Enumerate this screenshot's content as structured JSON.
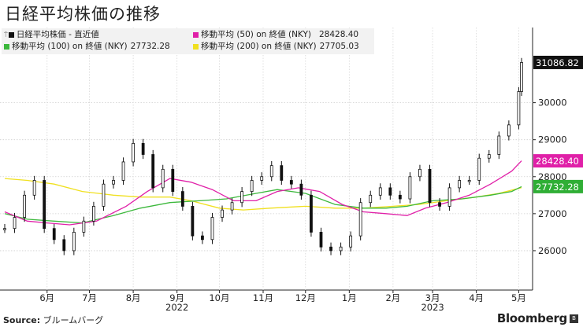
{
  "title": "日経平均株価の推移",
  "legend": {
    "items": [
      {
        "label": "日経平均株価 - 直近値",
        "value": "",
        "color": "#111111"
      },
      {
        "label": "移動平均 (50) on 終値 (NKY)",
        "value": "28428.40",
        "color": "#e020a8"
      },
      {
        "label": "移動平均 (100) on 終値 (NKY)",
        "value": "27732.28",
        "color": "#3cb83c"
      },
      {
        "label": "移動平均 (200) on 終値 (NKY)",
        "value": "27705.03",
        "color": "#f0e020"
      }
    ]
  },
  "source": {
    "prefix": "Source:",
    "text": "ブルームバーグ"
  },
  "brand": "Bloomberg",
  "chart_data": {
    "type": "line",
    "title": "日経平均株価の推移",
    "x_range": [
      "2022-05-16",
      "2023-05-17"
    ],
    "ylim": [
      25000,
      31500
    ],
    "y_ticks": [
      26000,
      27000,
      28000,
      29000,
      30000
    ],
    "y_tick_labels": [
      "26000",
      "27000",
      "28000",
      "29000",
      "30000"
    ],
    "x_ticks": [
      "6月",
      "7月",
      "8月",
      "9月",
      "10月",
      "11月",
      "12月",
      "1月",
      "2月",
      "3月",
      "4月",
      "5月"
    ],
    "x_tick_dates": [
      "2022-06-15",
      "2022-07-15",
      "2022-08-15",
      "2022-09-15",
      "2022-10-15",
      "2022-11-15",
      "2022-12-15",
      "2023-01-15",
      "2023-02-15",
      "2023-03-15",
      "2023-04-15",
      "2023-05-15"
    ],
    "year_labels": [
      {
        "label": "2022",
        "date": "2022-09-15"
      },
      {
        "label": "2023",
        "date": "2023-03-15"
      }
    ],
    "last_value_labels": [
      {
        "series": "日経平均株価 - 直近値",
        "value": "31086.82",
        "color": "#111111"
      },
      {
        "series": "移動平均 (50) on 終値 (NKY)",
        "value": "28428.40",
        "color": "#e020a8"
      },
      {
        "series": "移動平均 (100) on 終値 (NKY)",
        "value": "27732.28",
        "color": "#2fae35"
      }
    ],
    "grid": true,
    "series": [
      {
        "name": "日経平均株価 - 直近値",
        "kind": "candles",
        "color": "#111111",
        "points": [
          [
            "2022-05-16",
            26600
          ],
          [
            "2022-05-23",
            26900
          ],
          [
            "2022-05-30",
            27500
          ],
          [
            "2022-06-06",
            27900
          ],
          [
            "2022-06-13",
            26600
          ],
          [
            "2022-06-20",
            26300
          ],
          [
            "2022-06-27",
            26000
          ],
          [
            "2022-07-04",
            26500
          ],
          [
            "2022-07-11",
            26800
          ],
          [
            "2022-07-18",
            27200
          ],
          [
            "2022-07-25",
            27800
          ],
          [
            "2022-08-01",
            27900
          ],
          [
            "2022-08-08",
            28400
          ],
          [
            "2022-08-15",
            28900
          ],
          [
            "2022-08-22",
            28600
          ],
          [
            "2022-08-29",
            27700
          ],
          [
            "2022-09-05",
            28200
          ],
          [
            "2022-09-12",
            27600
          ],
          [
            "2022-09-19",
            27200
          ],
          [
            "2022-09-26",
            26400
          ],
          [
            "2022-10-03",
            26300
          ],
          [
            "2022-10-10",
            26900
          ],
          [
            "2022-10-17",
            27100
          ],
          [
            "2022-10-24",
            27300
          ],
          [
            "2022-10-31",
            27600
          ],
          [
            "2022-11-07",
            27900
          ],
          [
            "2022-11-14",
            28000
          ],
          [
            "2022-11-21",
            28300
          ],
          [
            "2022-11-28",
            27900
          ],
          [
            "2022-12-05",
            27800
          ],
          [
            "2022-12-12",
            27500
          ],
          [
            "2022-12-19",
            26500
          ],
          [
            "2022-12-26",
            26100
          ],
          [
            "2023-01-02",
            26000
          ],
          [
            "2023-01-09",
            26100
          ],
          [
            "2023-01-16",
            26400
          ],
          [
            "2023-01-23",
            27300
          ],
          [
            "2023-01-30",
            27500
          ],
          [
            "2023-02-06",
            27700
          ],
          [
            "2023-02-13",
            27500
          ],
          [
            "2023-02-20",
            27400
          ],
          [
            "2023-02-27",
            28000
          ],
          [
            "2023-03-06",
            28200
          ],
          [
            "2023-03-13",
            27300
          ],
          [
            "2023-03-20",
            27200
          ],
          [
            "2023-03-27",
            27700
          ],
          [
            "2023-04-03",
            27900
          ],
          [
            "2023-04-10",
            27900
          ],
          [
            "2023-04-17",
            28500
          ],
          [
            "2023-04-24",
            28600
          ],
          [
            "2023-05-01",
            29100
          ],
          [
            "2023-05-08",
            29400
          ],
          [
            "2023-05-15",
            30300
          ],
          [
            "2023-05-17",
            31086.82
          ]
        ]
      },
      {
        "name": "移動平均 (50) on 終値 (NKY)",
        "kind": "line",
        "color": "#e020a8",
        "points": [
          [
            "2022-05-16",
            27050
          ],
          [
            "2022-06-01",
            26800
          ],
          [
            "2022-06-15",
            26750
          ],
          [
            "2022-07-01",
            26700
          ],
          [
            "2022-07-20",
            26800
          ],
          [
            "2022-08-10",
            27200
          ],
          [
            "2022-08-25",
            27600
          ],
          [
            "2022-09-10",
            27950
          ],
          [
            "2022-09-25",
            27850
          ],
          [
            "2022-10-10",
            27650
          ],
          [
            "2022-10-25",
            27350
          ],
          [
            "2022-11-10",
            27350
          ],
          [
            "2022-11-25",
            27600
          ],
          [
            "2022-12-10",
            27700
          ],
          [
            "2022-12-25",
            27600
          ],
          [
            "2023-01-10",
            27250
          ],
          [
            "2023-01-25",
            27050
          ],
          [
            "2023-02-10",
            27000
          ],
          [
            "2023-02-25",
            26950
          ],
          [
            "2023-03-10",
            27150
          ],
          [
            "2023-03-25",
            27300
          ],
          [
            "2023-04-10",
            27500
          ],
          [
            "2023-04-25",
            27800
          ],
          [
            "2023-05-10",
            28150
          ],
          [
            "2023-05-17",
            28428.4
          ]
        ]
      },
      {
        "name": "移動平均 (100) on 終値 (NKY)",
        "kind": "line",
        "color": "#3cb83c",
        "points": [
          [
            "2022-05-16",
            27000
          ],
          [
            "2022-06-01",
            26850
          ],
          [
            "2022-06-20",
            26800
          ],
          [
            "2022-07-10",
            26750
          ],
          [
            "2022-08-01",
            26950
          ],
          [
            "2022-08-20",
            27150
          ],
          [
            "2022-09-10",
            27300
          ],
          [
            "2022-10-01",
            27350
          ],
          [
            "2022-10-20",
            27400
          ],
          [
            "2022-11-10",
            27550
          ],
          [
            "2022-11-25",
            27650
          ],
          [
            "2022-12-15",
            27550
          ],
          [
            "2023-01-05",
            27250
          ],
          [
            "2023-01-25",
            27150
          ],
          [
            "2023-02-10",
            27150
          ],
          [
            "2023-02-25",
            27200
          ],
          [
            "2023-03-15",
            27350
          ],
          [
            "2023-04-05",
            27400
          ],
          [
            "2023-04-25",
            27500
          ],
          [
            "2023-05-10",
            27600
          ],
          [
            "2023-05-17",
            27732.28
          ]
        ]
      },
      {
        "name": "移動平均 (200) on 終値 (NKY)",
        "kind": "line",
        "color": "#f0e020",
        "points": [
          [
            "2022-05-16",
            27950
          ],
          [
            "2022-06-01",
            27900
          ],
          [
            "2022-06-20",
            27800
          ],
          [
            "2022-07-10",
            27600
          ],
          [
            "2022-08-01",
            27500
          ],
          [
            "2022-08-20",
            27450
          ],
          [
            "2022-09-10",
            27450
          ],
          [
            "2022-09-25",
            27350
          ],
          [
            "2022-10-15",
            27150
          ],
          [
            "2022-11-01",
            27100
          ],
          [
            "2022-11-20",
            27150
          ],
          [
            "2022-12-15",
            27200
          ],
          [
            "2023-01-05",
            27150
          ],
          [
            "2023-01-25",
            27150
          ],
          [
            "2023-02-15",
            27200
          ],
          [
            "2023-03-05",
            27250
          ],
          [
            "2023-03-25",
            27350
          ],
          [
            "2023-04-15",
            27450
          ],
          [
            "2023-05-01",
            27550
          ],
          [
            "2023-05-17",
            27705.03
          ]
        ]
      }
    ]
  }
}
